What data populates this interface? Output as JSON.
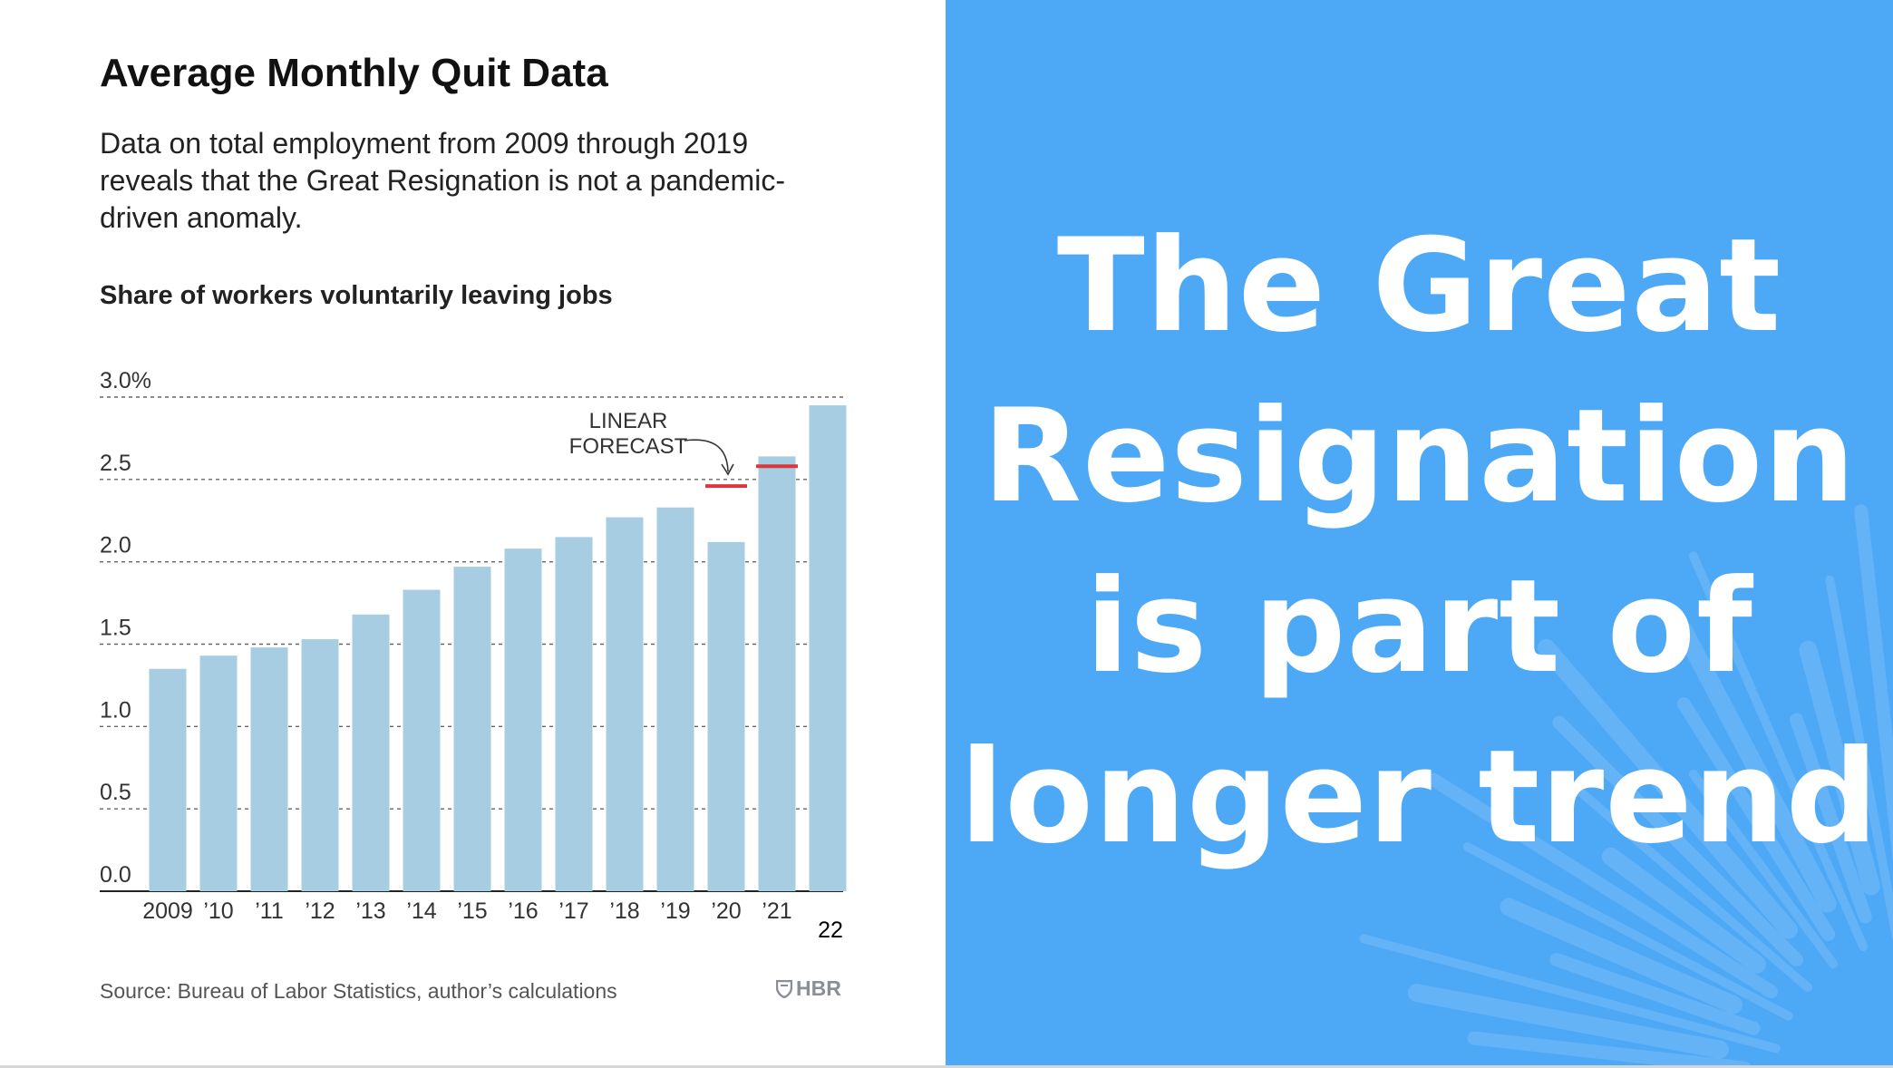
{
  "chart": {
    "title": "Average Monthly Quit Data",
    "subtitle": "Data on total employment from 2009 through 2019 reveals that the Great Resignation is not a pandemic-driven anomaly.",
    "label": "Share of workers voluntarily leaving jobs",
    "source": "Source: Bureau of Labor Statistics, author’s calculations",
    "brand": "HBR",
    "annotation_line1": "LINEAR",
    "annotation_line2": "FORECAST"
  },
  "headline": "The Great Resignation is part of longer trend",
  "colors": {
    "bar": "#a6cde2",
    "forecast": "#d9383e",
    "panel": "#4da8f6",
    "gridline": "#666666"
  },
  "chart_data": {
    "type": "bar",
    "categories": [
      "2009",
      "’10",
      "’11",
      "’12",
      "’13",
      "’14",
      "’15",
      "’16",
      "’17",
      "’18",
      "’19",
      "’20",
      "’21",
      "22"
    ],
    "values": [
      1.35,
      1.43,
      1.48,
      1.53,
      1.68,
      1.83,
      1.97,
      2.08,
      2.15,
      2.27,
      2.33,
      2.12,
      2.64,
      2.95
    ],
    "forecast": [
      {
        "category": "’20",
        "value": 2.46
      },
      {
        "category": "’21",
        "value": 2.58
      }
    ],
    "y_ticks": [
      "3.0%",
      "2.5",
      "2.0",
      "1.5",
      "1.0",
      "0.5",
      "0.0"
    ],
    "ylim": [
      0,
      3.0
    ],
    "grid": true
  }
}
